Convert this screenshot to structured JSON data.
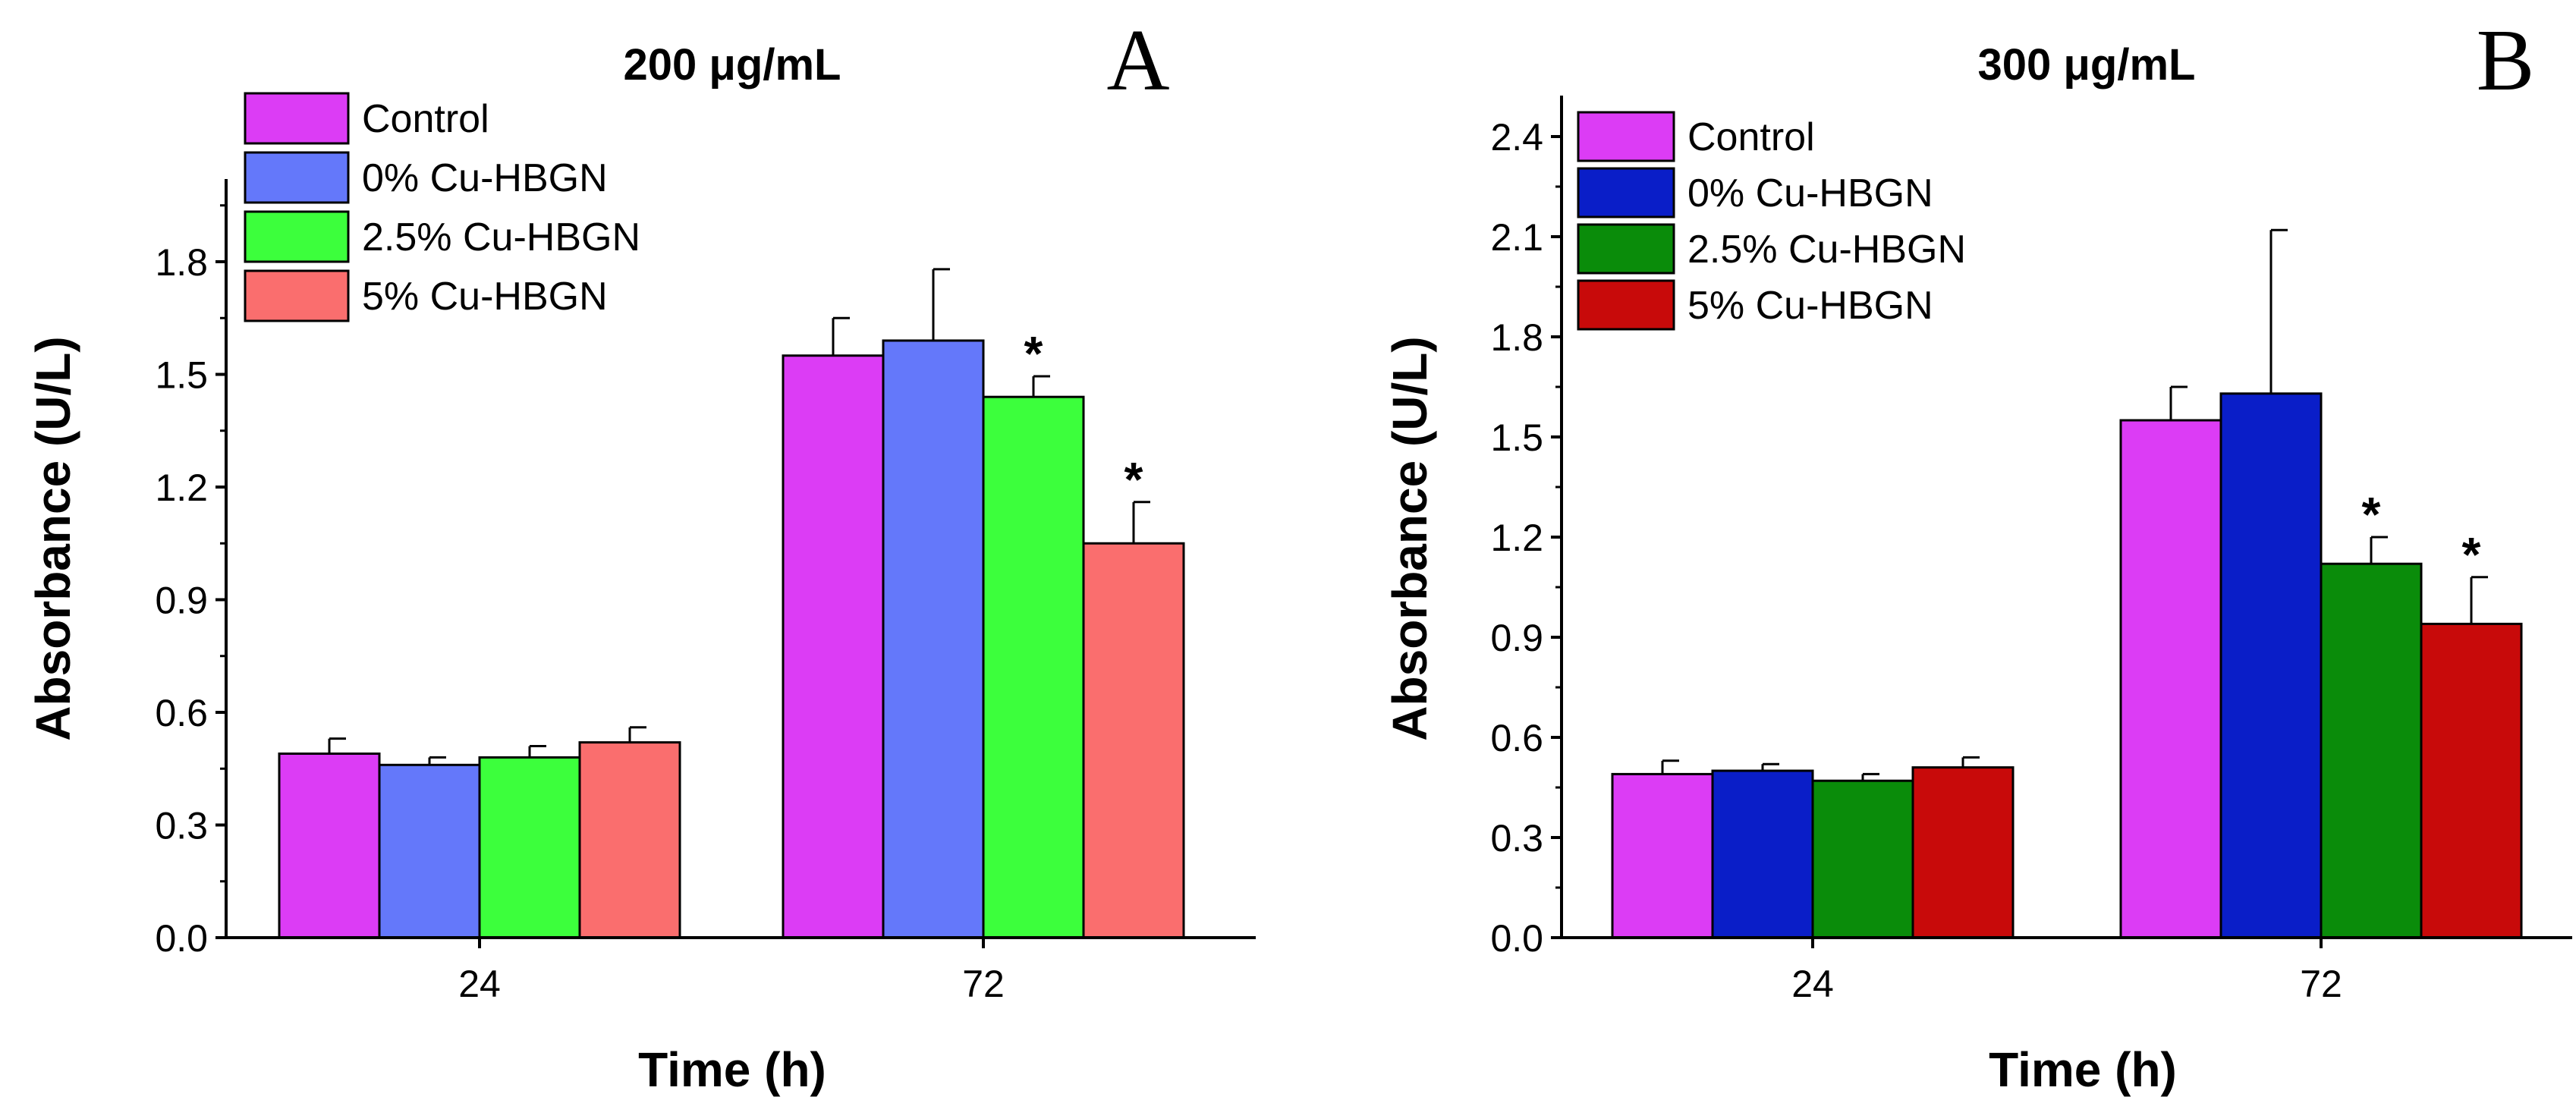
{
  "chart_data": [
    {
      "type": "bar",
      "panel_label": "A",
      "title": "200 μg/mL",
      "xlabel": "Time (h)",
      "ylabel": "Absorbance (U/L)",
      "categories": [
        "24",
        "72"
      ],
      "ylim": [
        0,
        2.0
      ],
      "yticks": [
        "0.0",
        "0.3",
        "0.6",
        "0.9",
        "1.2",
        "1.5",
        "1.8"
      ],
      "legend_position": "top-left",
      "series": [
        {
          "name": "Control",
          "color": "#dc3cf5",
          "values": [
            0.49,
            1.55
          ],
          "errors": [
            0.04,
            0.1
          ],
          "significant": [
            false,
            false
          ]
        },
        {
          "name": "0% Cu-HBGN",
          "color": "#6478fa",
          "values": [
            0.46,
            1.59
          ],
          "errors": [
            0.02,
            0.19
          ],
          "significant": [
            false,
            false
          ]
        },
        {
          "name": "2.5% Cu-HBGN",
          "color": "#3cff3c",
          "values": [
            0.48,
            1.44
          ],
          "errors": [
            0.03,
            0.055
          ],
          "significant": [
            false,
            true
          ]
        },
        {
          "name": "5% Cu-HBGN",
          "color": "#fa6e6e",
          "values": [
            0.52,
            1.05
          ],
          "errors": [
            0.04,
            0.11
          ],
          "significant": [
            false,
            true
          ]
        }
      ],
      "significance_marker": "*"
    },
    {
      "type": "bar",
      "panel_label": "B",
      "title": "300 μg/mL",
      "xlabel": "Time (h)",
      "ylabel": "Absorbance (U/L)",
      "categories": [
        "24",
        "72"
      ],
      "ylim": [
        0,
        2.5
      ],
      "yticks": [
        "0.0",
        "0.3",
        "0.6",
        "0.9",
        "1.2",
        "1.5",
        "1.8",
        "2.1",
        "2.4"
      ],
      "legend_position": "top-left",
      "series": [
        {
          "name": "Control",
          "color": "#dc3cf5",
          "values": [
            0.49,
            1.55
          ],
          "errors": [
            0.04,
            0.1
          ],
          "significant": [
            false,
            false
          ]
        },
        {
          "name": "0% Cu-HBGN",
          "color": "#0a1ec8",
          "values": [
            0.5,
            1.63
          ],
          "errors": [
            0.02,
            0.49
          ],
          "significant": [
            false,
            false
          ]
        },
        {
          "name": "2.5% Cu-HBGN",
          "color": "#0a8c0a",
          "values": [
            0.47,
            1.12
          ],
          "errors": [
            0.02,
            0.08
          ],
          "significant": [
            false,
            true
          ]
        },
        {
          "name": "5% Cu-HBGN",
          "color": "#c80a0a",
          "values": [
            0.51,
            0.94
          ],
          "errors": [
            0.03,
            0.14
          ],
          "significant": [
            false,
            true
          ]
        }
      ],
      "significance_marker": "*"
    }
  ]
}
